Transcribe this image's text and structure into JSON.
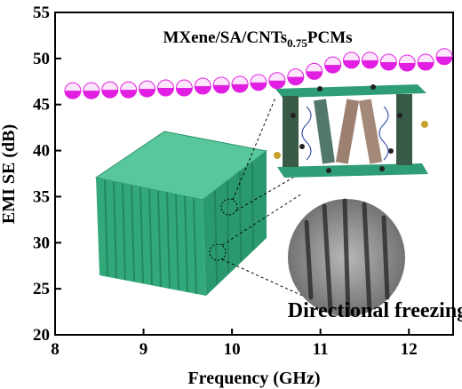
{
  "chart_data": {
    "type": "scatter",
    "title_parts": [
      "MXene/SA/CNTs",
      "0.75",
      "PCMs"
    ],
    "annotation": "Directional freezing",
    "x_label": "Frequency (GHz)",
    "y_label": "EMI SE (dB)",
    "x": [
      8.2,
      8.41,
      8.62,
      8.83,
      9.04,
      9.25,
      9.46,
      9.67,
      9.88,
      10.09,
      10.3,
      10.51,
      10.72,
      10.93,
      11.14,
      11.35,
      11.56,
      11.77,
      11.98,
      12.19,
      12.4
    ],
    "series": [
      {
        "color": "#e21ee2",
        "values": [
          46.5,
          46.5,
          46.6,
          46.6,
          46.7,
          46.8,
          46.8,
          47.0,
          47.1,
          47.2,
          47.4,
          47.6,
          48.0,
          48.6,
          49.3,
          49.8,
          49.8,
          49.6,
          49.5,
          49.6,
          50.2
        ]
      }
    ],
    "xlim": [
      8,
      12.5
    ],
    "ylim": [
      20,
      55
    ],
    "xticks": [
      8,
      9,
      10,
      11,
      12
    ],
    "yticks": [
      20,
      25,
      30,
      35,
      40,
      45,
      50,
      55
    ]
  }
}
